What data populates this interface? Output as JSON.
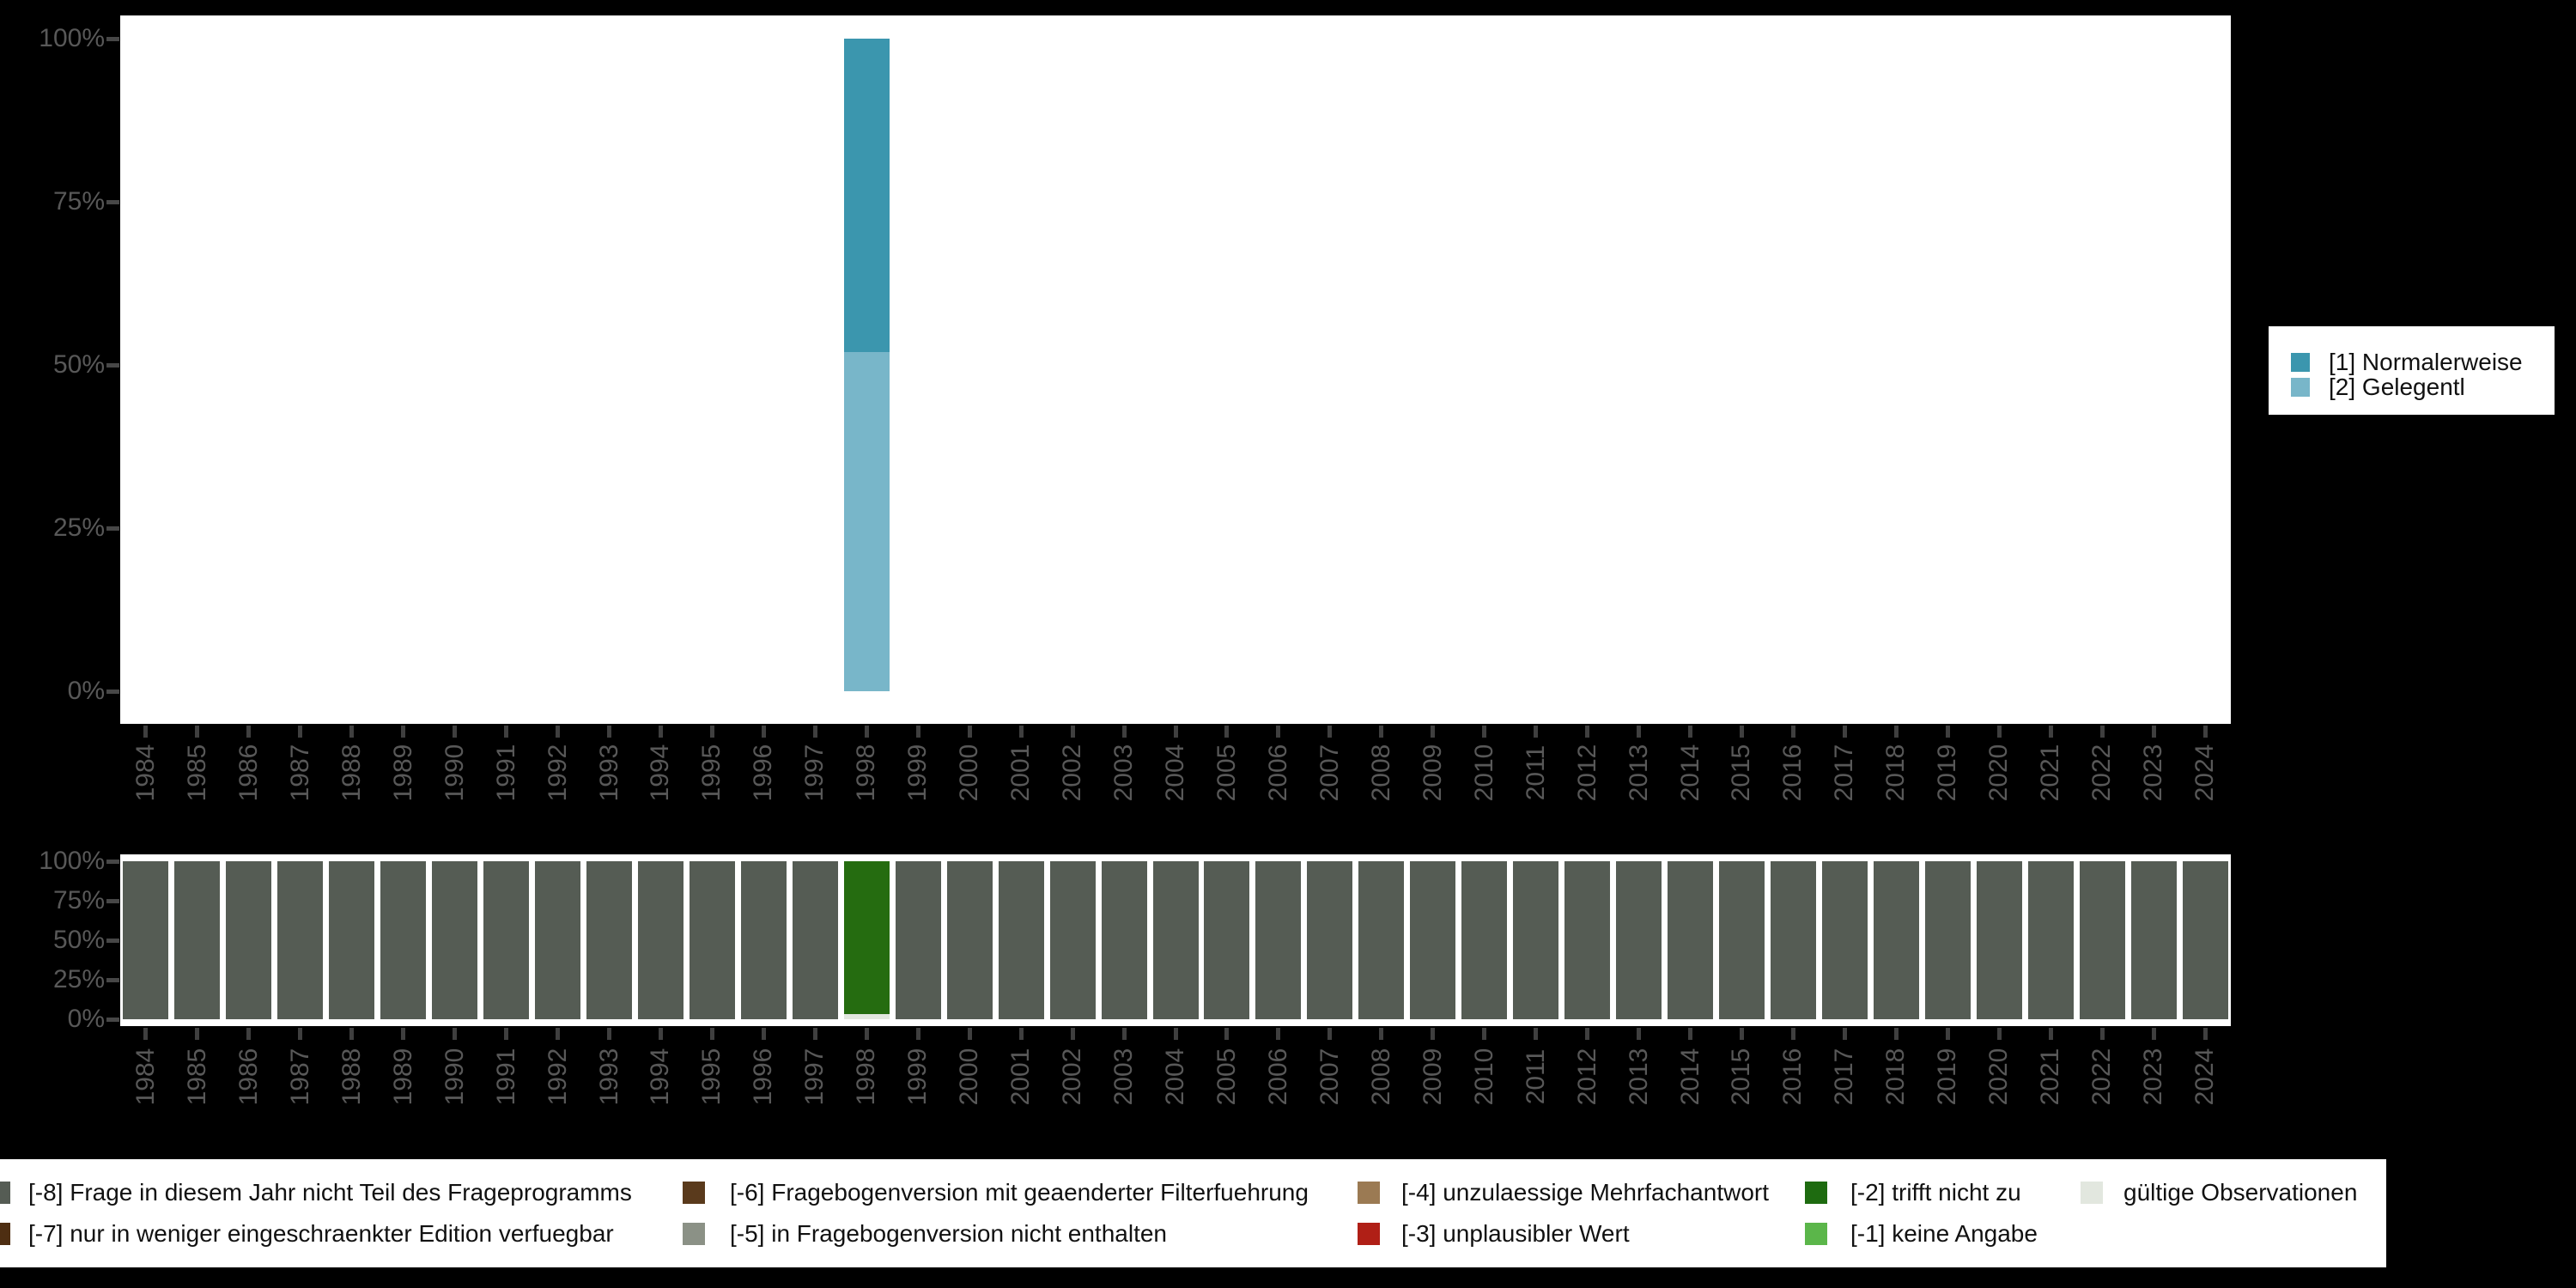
{
  "figure": {
    "background": "#000000",
    "panel_background": "#ffffff",
    "axis_text_color": "#585858",
    "tick_color": "#3f3f3f"
  },
  "years": [
    "1984",
    "1985",
    "1986",
    "1987",
    "1988",
    "1989",
    "1990",
    "1991",
    "1992",
    "1993",
    "1994",
    "1995",
    "1996",
    "1997",
    "1998",
    "1999",
    "2000",
    "2001",
    "2002",
    "2003",
    "2004",
    "2005",
    "2006",
    "2007",
    "2008",
    "2009",
    "2010",
    "2011",
    "2012",
    "2013",
    "2014",
    "2015",
    "2016",
    "2017",
    "2018",
    "2019",
    "2020",
    "2021",
    "2022",
    "2023",
    "2024"
  ],
  "chart_data": [
    {
      "id": "answers-by-year",
      "type": "bar",
      "stacked": true,
      "title": "",
      "xlabel": "",
      "ylabel": "",
      "categories": [
        "1984",
        "1985",
        "1986",
        "1987",
        "1988",
        "1989",
        "1990",
        "1991",
        "1992",
        "1993",
        "1994",
        "1995",
        "1996",
        "1997",
        "1998",
        "1999",
        "2000",
        "2001",
        "2002",
        "2003",
        "2004",
        "2005",
        "2006",
        "2007",
        "2008",
        "2009",
        "2010",
        "2011",
        "2012",
        "2013",
        "2014",
        "2015",
        "2016",
        "2017",
        "2018",
        "2019",
        "2020",
        "2021",
        "2022",
        "2023",
        "2024"
      ],
      "yticks": [
        "0%",
        "25%",
        "50%",
        "75%",
        "100%"
      ],
      "ylim": [
        0,
        100
      ],
      "grid": false,
      "legend_position": "right",
      "series": [
        {
          "name": "[1] Normalerweise",
          "color": "#3b96ae",
          "default": 0,
          "values_by_year": {
            "1998": 48
          }
        },
        {
          "name": "[2] Gelegentl",
          "color": "#78b6c9",
          "default": 0,
          "values_by_year": {
            "1998": 52
          }
        }
      ]
    },
    {
      "id": "missings-by-year",
      "type": "bar",
      "stacked": true,
      "title": "",
      "xlabel": "",
      "ylabel": "",
      "categories": [
        "1984",
        "1985",
        "1986",
        "1987",
        "1988",
        "1989",
        "1990",
        "1991",
        "1992",
        "1993",
        "1994",
        "1995",
        "1996",
        "1997",
        "1998",
        "1999",
        "2000",
        "2001",
        "2002",
        "2003",
        "2004",
        "2005",
        "2006",
        "2007",
        "2008",
        "2009",
        "2010",
        "2011",
        "2012",
        "2013",
        "2014",
        "2015",
        "2016",
        "2017",
        "2018",
        "2019",
        "2020",
        "2021",
        "2022",
        "2023",
        "2024"
      ],
      "yticks": [
        "0%",
        "25%",
        "50%",
        "75%",
        "100%"
      ],
      "ylim": [
        0,
        100
      ],
      "grid": false,
      "legend_position": "bottom",
      "series": [
        {
          "name": "[-8] Frage in diesem Jahr nicht Teil des Frageprogramms",
          "color": "#555c54",
          "default": 100,
          "values_by_year": {
            "1998": 0
          }
        },
        {
          "name": "[-2] trifft nicht zu",
          "color": "#256c10",
          "default": 0,
          "values_by_year": {
            "1998": 97
          }
        },
        {
          "name": "gültige Observationen",
          "color": "#e2e7df",
          "default": 0,
          "values_by_year": {
            "1998": 3
          }
        }
      ]
    }
  ],
  "legend_right": {
    "items": [
      {
        "label": "[1] Normalerweise",
        "color": "#3b96ae"
      },
      {
        "label": "[2] Gelegentl",
        "color": "#78b6c9"
      }
    ]
  },
  "legend_bottom": {
    "columns": [
      [
        {
          "label": "[-8] Frage in diesem Jahr nicht Teil des Frageprogramms",
          "color": "#555c54"
        },
        {
          "label": "[-7] nur in weniger eingeschraenkter Edition verfuegbar",
          "color": "#4e2e12"
        }
      ],
      [
        {
          "label": "[-6] Fragebogenversion mit geaenderter Filterfuehrung",
          "color": "#5a3a1c"
        },
        {
          "label": "[-5] in Fragebogenversion nicht enthalten",
          "color": "#8b9186"
        }
      ],
      [
        {
          "label": "[-4] unzulaessige Mehrfachantwort",
          "color": "#9b7a53"
        },
        {
          "label": "[-3] unplausibler Wert",
          "color": "#b01f16"
        }
      ],
      [
        {
          "label": "[-2] trifft nicht zu",
          "color": "#1e6b10"
        },
        {
          "label": "[-1] keine Angabe",
          "color": "#5bb64a"
        }
      ],
      [
        {
          "label": "gültige Observationen",
          "color": "#e2e7df"
        }
      ]
    ]
  }
}
